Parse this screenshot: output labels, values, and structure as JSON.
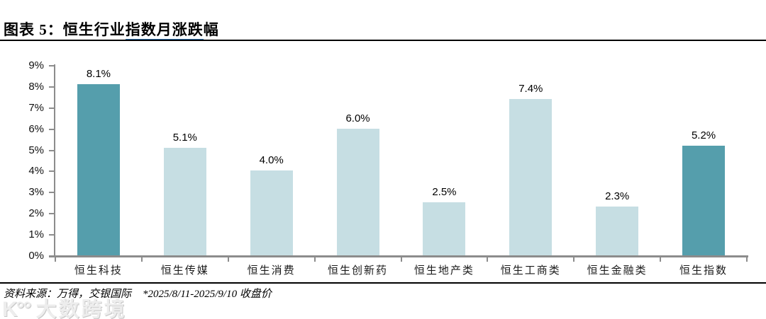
{
  "header": {
    "title_prefix": "图表 5：恒生行业",
    "title_underlined": "指数月涨跌",
    "title_suffix": "幅",
    "underline_color": "#2e75b6"
  },
  "chart_data": {
    "type": "bar",
    "title": "恒生行业指数月涨跌幅",
    "categories": [
      "恒生科技",
      "恒生传媒",
      "恒生消费",
      "恒生创新药",
      "恒生地产类",
      "恒生工商类",
      "恒生金融类",
      "恒生指数"
    ],
    "values": [
      8.1,
      5.1,
      4.0,
      6.0,
      2.5,
      7.4,
      2.3,
      5.2
    ],
    "value_labels": [
      "8.1%",
      "5.1%",
      "4.0%",
      "6.0%",
      "2.5%",
      "7.4%",
      "2.3%",
      "5.2%"
    ],
    "highlight_indexes": [
      0,
      7
    ],
    "bar_color": "#c6dee3",
    "highlight_color": "#559eac",
    "axis_color": "#8c8c8c",
    "ylim": [
      0,
      9
    ],
    "ytick_labels": [
      "0%",
      "1%",
      "2%",
      "3%",
      "4%",
      "5%",
      "6%",
      "7%",
      "8%",
      "9%"
    ],
    "grid": false,
    "legend": null
  },
  "footer": {
    "source": "资料来源：万得，交银国际",
    "note": "*2025/8/11-2025/9/10 收盘价"
  },
  "watermark": {
    "logo_glyph": "K°°",
    "text": "大数跨境"
  }
}
